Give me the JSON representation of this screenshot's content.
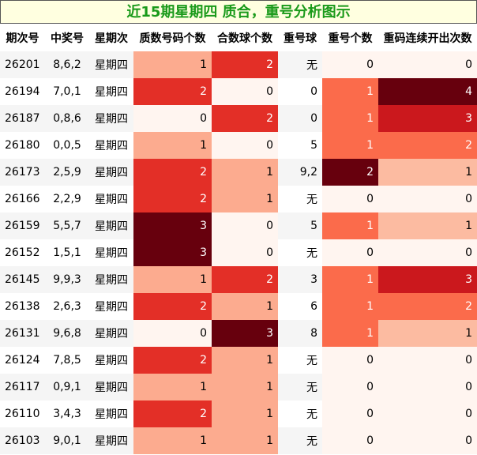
{
  "title": "近15期星期四 质合，重号分析图示",
  "chart_data": {
    "type": "heatmap",
    "columns": [
      "期次号",
      "中奖号",
      "星期次",
      "质数号码个数",
      "合数球个数",
      "重号球",
      "重号个数",
      "重码连续开出次数"
    ],
    "rows": [
      {
        "period": "26201",
        "number": "8,6,2",
        "weekday": "星期四",
        "prime": 1,
        "composite": 2,
        "repeat": "无",
        "repeat_count": 0,
        "consecutive": 0
      },
      {
        "period": "26194",
        "number": "7,0,1",
        "weekday": "星期四",
        "prime": 2,
        "composite": 0,
        "repeat": "0",
        "repeat_count": 1,
        "consecutive": 4
      },
      {
        "period": "26187",
        "number": "0,8,6",
        "weekday": "星期四",
        "prime": 0,
        "composite": 2,
        "repeat": "0",
        "repeat_count": 1,
        "consecutive": 3
      },
      {
        "period": "26180",
        "number": "0,0,5",
        "weekday": "星期四",
        "prime": 1,
        "composite": 0,
        "repeat": "5",
        "repeat_count": 1,
        "consecutive": 2
      },
      {
        "period": "26173",
        "number": "2,5,9",
        "weekday": "星期四",
        "prime": 2,
        "composite": 1,
        "repeat": "9,2",
        "repeat_count": 2,
        "consecutive": 1
      },
      {
        "period": "26166",
        "number": "2,2,9",
        "weekday": "星期四",
        "prime": 2,
        "composite": 1,
        "repeat": "无",
        "repeat_count": 0,
        "consecutive": 0
      },
      {
        "period": "26159",
        "number": "5,5,7",
        "weekday": "星期四",
        "prime": 3,
        "composite": 0,
        "repeat": "5",
        "repeat_count": 1,
        "consecutive": 1
      },
      {
        "period": "26152",
        "number": "1,5,1",
        "weekday": "星期四",
        "prime": 3,
        "composite": 0,
        "repeat": "无",
        "repeat_count": 0,
        "consecutive": 0
      },
      {
        "period": "26145",
        "number": "9,9,3",
        "weekday": "星期四",
        "prime": 1,
        "composite": 2,
        "repeat": "3",
        "repeat_count": 1,
        "consecutive": 3
      },
      {
        "period": "26138",
        "number": "2,6,3",
        "weekday": "星期四",
        "prime": 2,
        "composite": 1,
        "repeat": "6",
        "repeat_count": 1,
        "consecutive": 2
      },
      {
        "period": "26131",
        "number": "9,6,8",
        "weekday": "星期四",
        "prime": 0,
        "composite": 3,
        "repeat": "8",
        "repeat_count": 1,
        "consecutive": 1
      },
      {
        "period": "26124",
        "number": "7,8,5",
        "weekday": "星期四",
        "prime": 2,
        "composite": 1,
        "repeat": "无",
        "repeat_count": 0,
        "consecutive": 0
      },
      {
        "period": "26117",
        "number": "0,9,1",
        "weekday": "星期四",
        "prime": 1,
        "composite": 1,
        "repeat": "无",
        "repeat_count": 0,
        "consecutive": 0
      },
      {
        "period": "26110",
        "number": "3,4,3",
        "weekday": "星期四",
        "prime": 2,
        "composite": 1,
        "repeat": "无",
        "repeat_count": 0,
        "consecutive": 0
      },
      {
        "period": "26103",
        "number": "9,0,1",
        "weekday": "星期四",
        "prime": 1,
        "composite": 1,
        "repeat": "无",
        "repeat_count": 0,
        "consecutive": 0
      }
    ],
    "heat_colors": {
      "prime": {
        "0": "#fff5f0",
        "1": "#fcab8f",
        "2": "#e32f27",
        "3": "#67000d"
      },
      "composite": {
        "0": "#fff5f0",
        "1": "#fcab8f",
        "2": "#e32f27",
        "3": "#67000d"
      },
      "repeat_count": {
        "0": "#fff5f0",
        "1": "#fb6b4b",
        "2": "#67000d"
      },
      "consecutive": {
        "0": "#fff5f0",
        "1": "#fcbba1",
        "2": "#fb6b4b",
        "3": "#cb181d",
        "4": "#67000d"
      }
    }
  }
}
